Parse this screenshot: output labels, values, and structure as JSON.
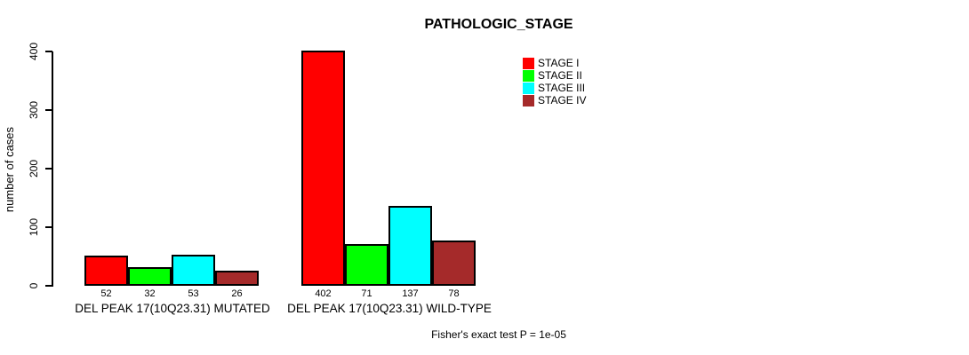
{
  "chart_data": {
    "type": "bar",
    "title": "PATHOLOGIC_STAGE",
    "ylabel": "number of cases",
    "xlabel": "",
    "ylim": [
      0,
      400
    ],
    "yticks": [
      "0",
      "100",
      "200",
      "300",
      "400"
    ],
    "grid": false,
    "legend_position": "top-right",
    "categories": [
      "DEL PEAK 17(10Q23.31) MUTATED",
      "DEL PEAK 17(10Q23.31) WILD-TYPE"
    ],
    "series": [
      {
        "name": "STAGE I",
        "color": "#FF0000",
        "values": [
          52,
          402
        ]
      },
      {
        "name": "STAGE II",
        "color": "#00FF00",
        "values": [
          32,
          71
        ]
      },
      {
        "name": "STAGE III",
        "color": "#00FFFF",
        "values": [
          53,
          137
        ]
      },
      {
        "name": "STAGE IV",
        "color": "#A52A2A",
        "values": [
          26,
          78
        ]
      }
    ],
    "value_labels_shown": true,
    "footnote": "Fisher's exact test P = 1e-05"
  }
}
